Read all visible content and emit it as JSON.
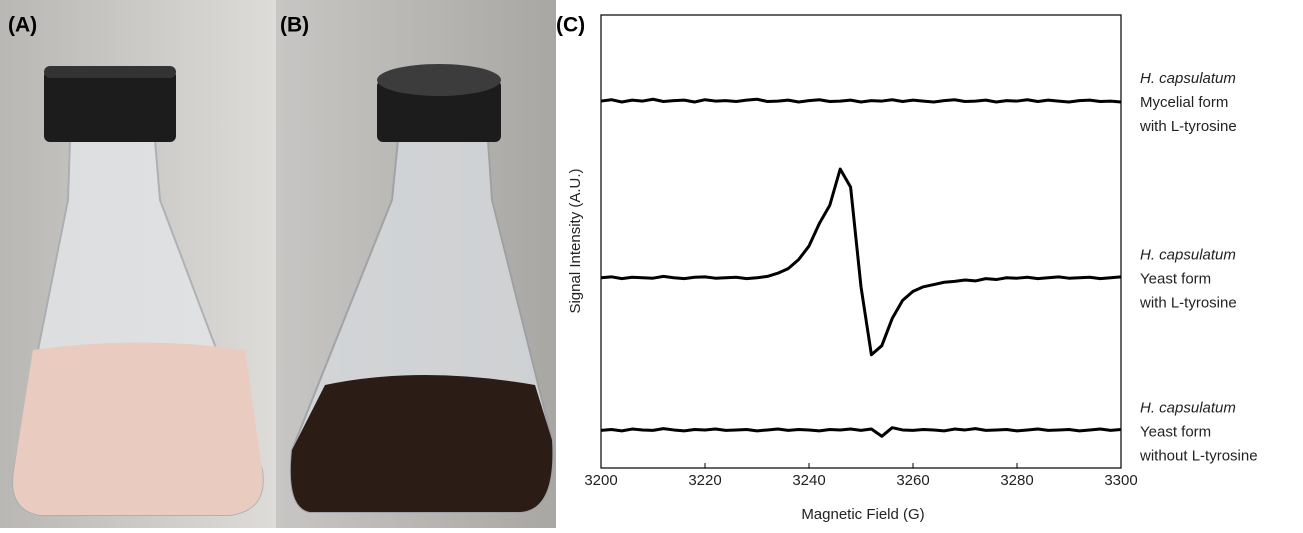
{
  "panels": [
    "(A)",
    "(B)",
    "(C)"
  ],
  "chart_data": {
    "type": "line",
    "xlabel": "Magnetic Field (G)",
    "ylabel": "Signal Intensity (A.U.)",
    "x": [
      3200,
      3202,
      3204,
      3206,
      3208,
      3210,
      3212,
      3214,
      3216,
      3218,
      3220,
      3222,
      3224,
      3226,
      3228,
      3230,
      3232,
      3234,
      3236,
      3238,
      3240,
      3242,
      3244,
      3246,
      3248,
      3250,
      3252,
      3254,
      3256,
      3258,
      3260,
      3262,
      3264,
      3266,
      3268,
      3270,
      3272,
      3274,
      3276,
      3278,
      3280,
      3282,
      3284,
      3286,
      3288,
      3290,
      3292,
      3294,
      3296,
      3298,
      3300
    ],
    "xlim": [
      3200,
      3300
    ],
    "xticks": [
      3200,
      3220,
      3240,
      3260,
      3280,
      3300
    ],
    "ylim": [
      0,
      100
    ],
    "series": [
      {
        "name": "H. capsulatum",
        "description": [
          "Mycelial form",
          "with L-tyrosine"
        ],
        "color": "#000000",
        "values": [
          81,
          81.3,
          80.8,
          81.2,
          81.0,
          81.4,
          80.9,
          81.1,
          81.2,
          80.8,
          81.3,
          81.0,
          81.1,
          80.9,
          81.2,
          81.4,
          80.9,
          81.0,
          81.2,
          80.8,
          81.1,
          81.3,
          80.9,
          81.0,
          81.2,
          80.8,
          81.1,
          81.0,
          81.3,
          80.9,
          81.2,
          81.0,
          80.8,
          81.1,
          81.3,
          80.9,
          81.0,
          81.2,
          80.8,
          81.1,
          81.0,
          81.3,
          80.9,
          81.2,
          81.0,
          80.8,
          81.1,
          81.2,
          80.9,
          81.0,
          80.8
        ]
      },
      {
        "name": "H. capsulatum",
        "description": [
          "Yeast form",
          "with L-tyrosine"
        ],
        "color": "#000000",
        "values": [
          42,
          42.2,
          41.8,
          42.1,
          42,
          41.9,
          42.3,
          42,
          41.8,
          42.1,
          42.2,
          41.9,
          42,
          42.1,
          41.8,
          42,
          42.3,
          43,
          44,
          46,
          49,
          54,
          58,
          66,
          62,
          40,
          25,
          27,
          33,
          37,
          39,
          40,
          40.5,
          41,
          41.2,
          41.5,
          41.3,
          41.8,
          41.6,
          42,
          41.9,
          42.1,
          41.8,
          42,
          42.2,
          41.9,
          42,
          42.1,
          41.8,
          42,
          42.2
        ]
      },
      {
        "name": "H. capsulatum",
        "description": [
          "Yeast form",
          "without L-tyrosine"
        ],
        "color": "#000000",
        "values": [
          8.3,
          8.5,
          8.2,
          8.6,
          8.4,
          8.3,
          8.7,
          8.4,
          8.2,
          8.5,
          8.4,
          8.6,
          8.3,
          8.4,
          8.5,
          8.2,
          8.4,
          8.6,
          8.3,
          8.5,
          8.4,
          8.2,
          8.5,
          8.4,
          8.6,
          8.3,
          8.6,
          7.0,
          8.9,
          8.4,
          8.3,
          8.5,
          8.4,
          8.2,
          8.6,
          8.4,
          8.7,
          8.3,
          8.4,
          8.5,
          8.2,
          8.4,
          8.6,
          8.3,
          8.4,
          8.5,
          8.2,
          8.4,
          8.6,
          8.3,
          8.5
        ]
      }
    ]
  }
}
